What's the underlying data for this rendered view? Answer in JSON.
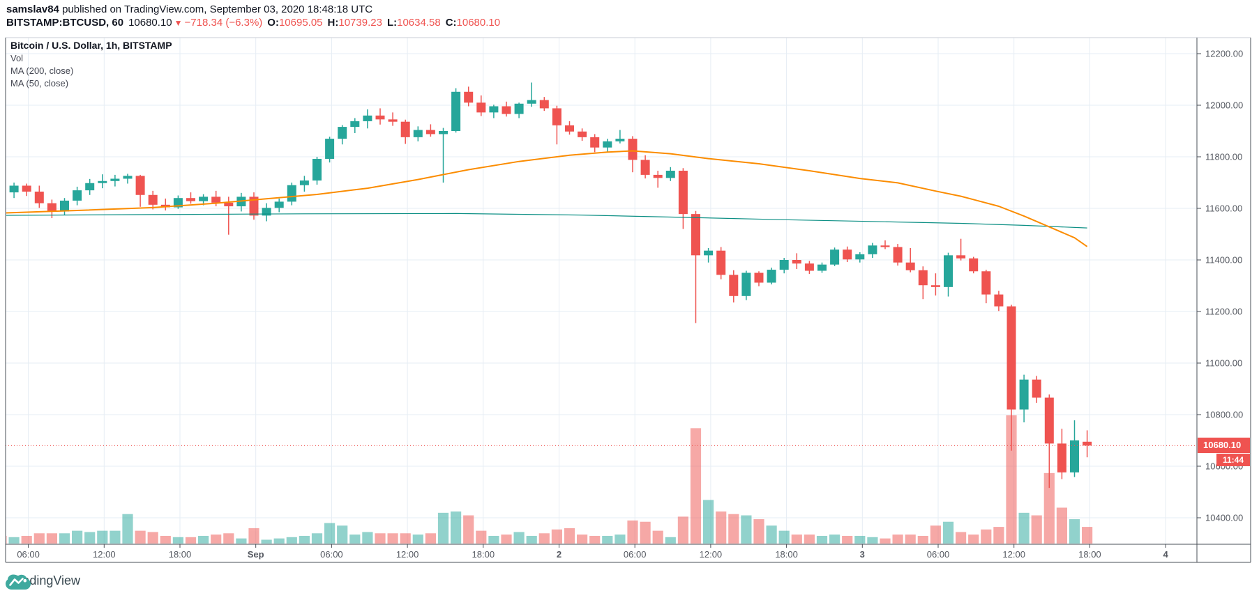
{
  "header": {
    "username": "samslav84",
    "published_text": " published on TradingView.com, September 03, 2020 18:48:18 UTC",
    "symbol_interval": "BITSTAMP:BTCUSD, 60",
    "last_price": "10680.10",
    "direction_icon": "▼",
    "change_text": "−718.34 (−6.3%)",
    "open_label": "O:",
    "open_value": "10695.05",
    "high_label": "H:",
    "high_value": "10739.23",
    "low_label": "L:",
    "low_value": "10634.58",
    "close_label": "C:",
    "close_value": "10680.10"
  },
  "legend": {
    "title": "Bitcoin / U.S. Dollar, 1h, BITSTAMP",
    "vol_label": "Vol",
    "ma200_label": "MA (200, close)",
    "ma50_label": "MA (50, close)"
  },
  "price_axis": {
    "labels": [
      "12200.00",
      "12000.00",
      "11800.00",
      "11600.00",
      "11400.00",
      "11200.00",
      "11000.00",
      "10800.00",
      "10600.00",
      "10400.00"
    ],
    "max": 12200,
    "step": 200,
    "last_price_label": "10680.10",
    "countdown": "11:44"
  },
  "time_axis": {
    "labels": [
      {
        "t": "06:00"
      },
      {
        "t": "12:00"
      },
      {
        "t": "18:00"
      },
      {
        "t": "Sep",
        "b": 1
      },
      {
        "t": "06:00"
      },
      {
        "t": "12:00"
      },
      {
        "t": "18:00"
      },
      {
        "t": "2",
        "b": 1
      },
      {
        "t": "06:00"
      },
      {
        "t": "12:00"
      },
      {
        "t": "18:00"
      },
      {
        "t": "3",
        "b": 1
      },
      {
        "t": "06:00"
      },
      {
        "t": "12:00"
      },
      {
        "t": "18:00"
      },
      {
        "t": "4",
        "b": 1
      }
    ]
  },
  "watermark": {
    "brand": "TradingView"
  },
  "colors": {
    "up": "#26a69a",
    "down": "#ef5350",
    "ma50": "#fb8c00",
    "ma200": "#0c8f84",
    "grid": "#e6edf4",
    "axis_text": "#555961",
    "border_dark": "#4a4f57",
    "border_light": "#c9cdd4",
    "badge": "#ef5350",
    "logo": "#3fa99e",
    "volume_opacity": 0.5
  },
  "chart_data": {
    "type": "candlestick",
    "title": "Bitcoin / U.S. Dollar",
    "exchange": "BITSTAMP",
    "symbol": "BTCUSD",
    "interval": "1h",
    "timezone": "UTC",
    "current_price": 10680.1,
    "bar_countdown": "11:44",
    "price_range_visible": [
      10297,
      12262
    ],
    "grid_step": 200,
    "overlays": [
      "Vol",
      "MA (200, close)",
      "MA (50, close)"
    ],
    "columns": [
      "time",
      "open",
      "high",
      "low",
      "close",
      "volume_rel_0_100"
    ],
    "candles": [
      [
        "08-31 04:00",
        11690,
        11706,
        11652,
        11662,
        6
      ],
      [
        "08-31 05:00",
        11662,
        11700,
        11640,
        11688,
        5
      ],
      [
        "08-31 06:00",
        11688,
        11696,
        11648,
        11665,
        6
      ],
      [
        "08-31 07:00",
        11665,
        11688,
        11602,
        11620,
        8
      ],
      [
        "08-31 08:00",
        11620,
        11634,
        11562,
        11588,
        8
      ],
      [
        "08-31 09:00",
        11588,
        11640,
        11574,
        11630,
        8
      ],
      [
        "08-31 10:00",
        11630,
        11684,
        11612,
        11670,
        10
      ],
      [
        "08-31 11:00",
        11670,
        11714,
        11652,
        11698,
        9
      ],
      [
        "08-31 12:00",
        11698,
        11732,
        11678,
        11706,
        10
      ],
      [
        "08-31 13:00",
        11706,
        11730,
        11685,
        11715,
        10
      ],
      [
        "08-31 14:00",
        11715,
        11734,
        11696,
        11726,
        23
      ],
      [
        "08-31 15:00",
        11726,
        11730,
        11606,
        11652,
        10
      ],
      [
        "08-31 16:00",
        11652,
        11668,
        11596,
        11614,
        9
      ],
      [
        "08-31 17:00",
        11614,
        11638,
        11592,
        11604,
        6
      ],
      [
        "08-31 18:00",
        11604,
        11650,
        11598,
        11640,
        5
      ],
      [
        "08-31 19:00",
        11640,
        11662,
        11618,
        11628,
        5
      ],
      [
        "08-31 20:00",
        11628,
        11655,
        11612,
        11645,
        6
      ],
      [
        "08-31 21:00",
        11645,
        11668,
        11608,
        11622,
        7
      ],
      [
        "08-31 22:00",
        11622,
        11645,
        11498,
        11608,
        8
      ],
      [
        "08-31 23:00",
        11608,
        11660,
        11588,
        11645,
        4
      ],
      [
        "09-01 00:00",
        11645,
        11662,
        11556,
        11572,
        12
      ],
      [
        "09-01 01:00",
        11572,
        11620,
        11550,
        11602,
        3
      ],
      [
        "09-01 02:00",
        11602,
        11638,
        11585,
        11626,
        4
      ],
      [
        "09-01 03:00",
        11626,
        11700,
        11612,
        11690,
        5
      ],
      [
        "09-01 04:00",
        11690,
        11726,
        11665,
        11708,
        6
      ],
      [
        "09-01 05:00",
        11708,
        11800,
        11692,
        11792,
        8
      ],
      [
        "09-01 06:00",
        11792,
        11878,
        11778,
        11870,
        16
      ],
      [
        "09-01 07:00",
        11870,
        11923,
        11848,
        11916,
        14
      ],
      [
        "09-01 08:00",
        11916,
        11950,
        11892,
        11938,
        7
      ],
      [
        "09-01 09:00",
        11938,
        11984,
        11910,
        11960,
        9
      ],
      [
        "09-01 10:00",
        11960,
        11988,
        11925,
        11945,
        8
      ],
      [
        "09-01 11:00",
        11945,
        11972,
        11920,
        11936,
        8
      ],
      [
        "09-01 12:00",
        11936,
        11944,
        11850,
        11876,
        8
      ],
      [
        "09-01 13:00",
        11876,
        11918,
        11860,
        11904,
        7
      ],
      [
        "09-01 14:00",
        11904,
        11926,
        11878,
        11888,
        8
      ],
      [
        "09-01 15:00",
        11888,
        11912,
        11700,
        11900,
        24
      ],
      [
        "09-01 16:00",
        11900,
        12066,
        11894,
        12052,
        25
      ],
      [
        "09-01 17:00",
        12052,
        12072,
        11996,
        12010,
        22
      ],
      [
        "09-01 18:00",
        12010,
        12038,
        11958,
        11972,
        10
      ],
      [
        "09-01 19:00",
        11972,
        12002,
        11950,
        11996,
        6
      ],
      [
        "09-01 20:00",
        11996,
        12014,
        11956,
        11966,
        7
      ],
      [
        "09-01 21:00",
        11966,
        12010,
        11950,
        12006,
        9
      ],
      [
        "09-01 22:00",
        12006,
        12088,
        11994,
        12020,
        6
      ],
      [
        "09-01 23:00",
        12020,
        12032,
        11978,
        11988,
        8
      ],
      [
        "09-02 00:00",
        11988,
        11998,
        11848,
        11922,
        11
      ],
      [
        "09-02 01:00",
        11922,
        11938,
        11886,
        11898,
        12
      ],
      [
        "09-02 02:00",
        11898,
        11910,
        11862,
        11876,
        7
      ],
      [
        "09-02 03:00",
        11876,
        11888,
        11818,
        11836,
        6
      ],
      [
        "09-02 04:00",
        11836,
        11870,
        11820,
        11860,
        6
      ],
      [
        "09-02 05:00",
        11860,
        11904,
        11852,
        11870,
        7
      ],
      [
        "09-02 06:00",
        11870,
        11880,
        11740,
        11788,
        18
      ],
      [
        "09-02 07:00",
        11788,
        11806,
        11716,
        11730,
        17
      ],
      [
        "09-02 08:00",
        11730,
        11746,
        11680,
        11718,
        10
      ],
      [
        "09-02 09:00",
        11718,
        11760,
        11706,
        11746,
        5
      ],
      [
        "09-02 10:00",
        11746,
        11756,
        11520,
        11578,
        21
      ],
      [
        "09-02 11:00",
        11578,
        11590,
        11155,
        11418,
        90
      ],
      [
        "09-02 12:00",
        11418,
        11446,
        11390,
        11436,
        34
      ],
      [
        "09-02 13:00",
        11436,
        11450,
        11325,
        11342,
        25
      ],
      [
        "09-02 14:00",
        11342,
        11360,
        11235,
        11260,
        23
      ],
      [
        "09-02 15:00",
        11260,
        11358,
        11244,
        11350,
        22
      ],
      [
        "09-02 16:00",
        11350,
        11356,
        11298,
        11312,
        19
      ],
      [
        "09-02 17:00",
        11312,
        11370,
        11305,
        11362,
        14
      ],
      [
        "09-02 18:00",
        11362,
        11408,
        11348,
        11400,
        10
      ],
      [
        "09-02 19:00",
        11400,
        11426,
        11365,
        11386,
        7
      ],
      [
        "09-02 20:00",
        11386,
        11396,
        11346,
        11358,
        7
      ],
      [
        "09-02 21:00",
        11358,
        11390,
        11350,
        11382,
        6
      ],
      [
        "09-02 22:00",
        11382,
        11448,
        11376,
        11440,
        7
      ],
      [
        "09-02 23:00",
        11440,
        11452,
        11392,
        11402,
        6
      ],
      [
        "09-03 00:00",
        11402,
        11430,
        11390,
        11422,
        6
      ],
      [
        "09-03 01:00",
        11422,
        11466,
        11408,
        11456,
        5
      ],
      [
        "09-03 02:00",
        11456,
        11476,
        11442,
        11450,
        4
      ],
      [
        "09-03 03:00",
        11450,
        11462,
        11378,
        11390,
        7
      ],
      [
        "09-03 04:00",
        11390,
        11446,
        11352,
        11360,
        7
      ],
      [
        "09-03 05:00",
        11360,
        11375,
        11248,
        11302,
        6
      ],
      [
        "09-03 06:00",
        11302,
        11348,
        11262,
        11295,
        14
      ],
      [
        "09-03 07:00",
        11295,
        11428,
        11258,
        11418,
        17
      ],
      [
        "09-03 08:00",
        11418,
        11482,
        11398,
        11406,
        9
      ],
      [
        "09-03 09:00",
        11406,
        11412,
        11348,
        11356,
        7
      ],
      [
        "09-03 10:00",
        11356,
        11362,
        11232,
        11266,
        11
      ],
      [
        "09-03 11:00",
        11266,
        11280,
        11202,
        11220,
        13
      ],
      [
        "09-03 12:00",
        11220,
        11226,
        10660,
        10820,
        100
      ],
      [
        "09-03 13:00",
        10820,
        10955,
        10770,
        10936,
        24
      ],
      [
        "09-03 14:00",
        10936,
        10950,
        10846,
        10866,
        22
      ],
      [
        "09-03 15:00",
        10866,
        10878,
        10516,
        10688,
        55
      ],
      [
        "09-03 16:00",
        10688,
        10745,
        10550,
        10576,
        28
      ],
      [
        "09-03 17:00",
        10576,
        10778,
        10558,
        10700,
        19
      ],
      [
        "09-03 18:00",
        10695.05,
        10739.23,
        10634.58,
        10680.1,
        13
      ]
    ],
    "ma50_points": [
      [
        0,
        11582
      ],
      [
        6,
        11592
      ],
      [
        12,
        11603
      ],
      [
        17,
        11620
      ],
      [
        21,
        11637
      ],
      [
        25,
        11654
      ],
      [
        29,
        11678
      ],
      [
        33,
        11712
      ],
      [
        37,
        11750
      ],
      [
        41,
        11782
      ],
      [
        45,
        11806
      ],
      [
        48,
        11818
      ],
      [
        50,
        11823
      ],
      [
        53,
        11812
      ],
      [
        56,
        11793
      ],
      [
        60,
        11773
      ],
      [
        64,
        11746
      ],
      [
        68,
        11716
      ],
      [
        71,
        11699
      ],
      [
        74,
        11667
      ],
      [
        76,
        11647
      ],
      [
        79,
        11608
      ],
      [
        81,
        11570
      ],
      [
        83,
        11528
      ],
      [
        85,
        11486
      ],
      [
        86,
        11452
      ]
    ],
    "ma200_points": [
      [
        0,
        11573
      ],
      [
        12,
        11576
      ],
      [
        24,
        11579
      ],
      [
        36,
        11580
      ],
      [
        46,
        11574
      ],
      [
        54,
        11565
      ],
      [
        62,
        11556
      ],
      [
        70,
        11548
      ],
      [
        76,
        11542
      ],
      [
        81,
        11534
      ],
      [
        86,
        11524
      ]
    ]
  }
}
